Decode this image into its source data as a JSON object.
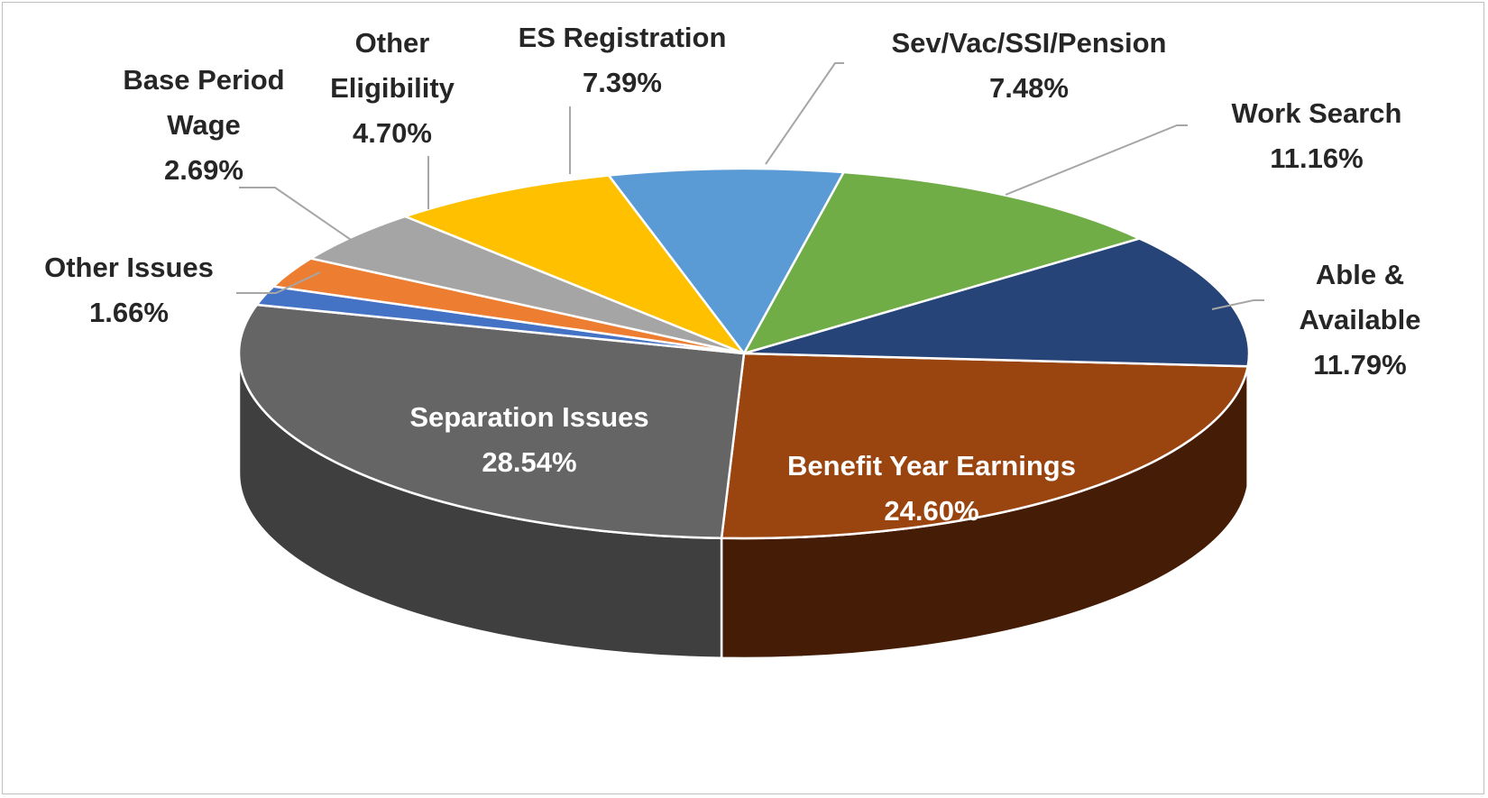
{
  "chart_data": {
    "type": "pie",
    "style": "3d",
    "title": "",
    "unit": "%",
    "slices": [
      {
        "name": "Benefit Year Earnings",
        "value": 24.6,
        "label": "24.60%",
        "color": "#9a4510",
        "side_color": "#451c05"
      },
      {
        "name": "Separation Issues",
        "value": 28.54,
        "label": "28.54%",
        "color": "#656565",
        "side_color": "#3f3f3f"
      },
      {
        "name": "Other Issues",
        "value": 1.66,
        "label": "1.66%",
        "color": "#4472c4",
        "side_color": "#2f5597"
      },
      {
        "name": "Base Period Wage",
        "value": 2.69,
        "label": "2.69%",
        "color": "#ed7d31",
        "side_color": "#a85a23"
      },
      {
        "name": "Other Eligibility",
        "value": 4.7,
        "label": "4.70%",
        "color": "#a5a5a5",
        "side_color": "#767676"
      },
      {
        "name": "ES Registration",
        "value": 7.39,
        "label": "7.39%",
        "color": "#ffc000",
        "side_color": "#b38600"
      },
      {
        "name": "Sev/Vac/SSI/Pension",
        "value": 7.48,
        "label": "7.48%",
        "color": "#5b9bd5",
        "side_color": "#3f6d96"
      },
      {
        "name": "Work Search",
        "value": 11.16,
        "label": "11.16%",
        "color": "#70ad47",
        "side_color": "#4e7932"
      },
      {
        "name": "Able & Available",
        "value": 11.79,
        "label": "11.79%",
        "color": "#264478",
        "side_color": "#172a4b"
      }
    ],
    "label_lines": {
      "Benefit Year Earnings": [
        "Benefit Year Earnings"
      ],
      "Separation Issues": [
        "Separation Issues"
      ],
      "Other Issues": [
        "Other Issues"
      ],
      "Base Period Wage": [
        "Base Period",
        "Wage"
      ],
      "Other Eligibility": [
        "Other",
        "Eligibility"
      ],
      "ES Registration": [
        "ES Registration"
      ],
      "Sev/Vac/SSI/Pension": [
        "Sev/Vac/SSI/Pension"
      ],
      "Work Search": [
        "Work Search"
      ],
      "Able & Available": [
        "Able &",
        "Available"
      ]
    },
    "legend": "none"
  }
}
